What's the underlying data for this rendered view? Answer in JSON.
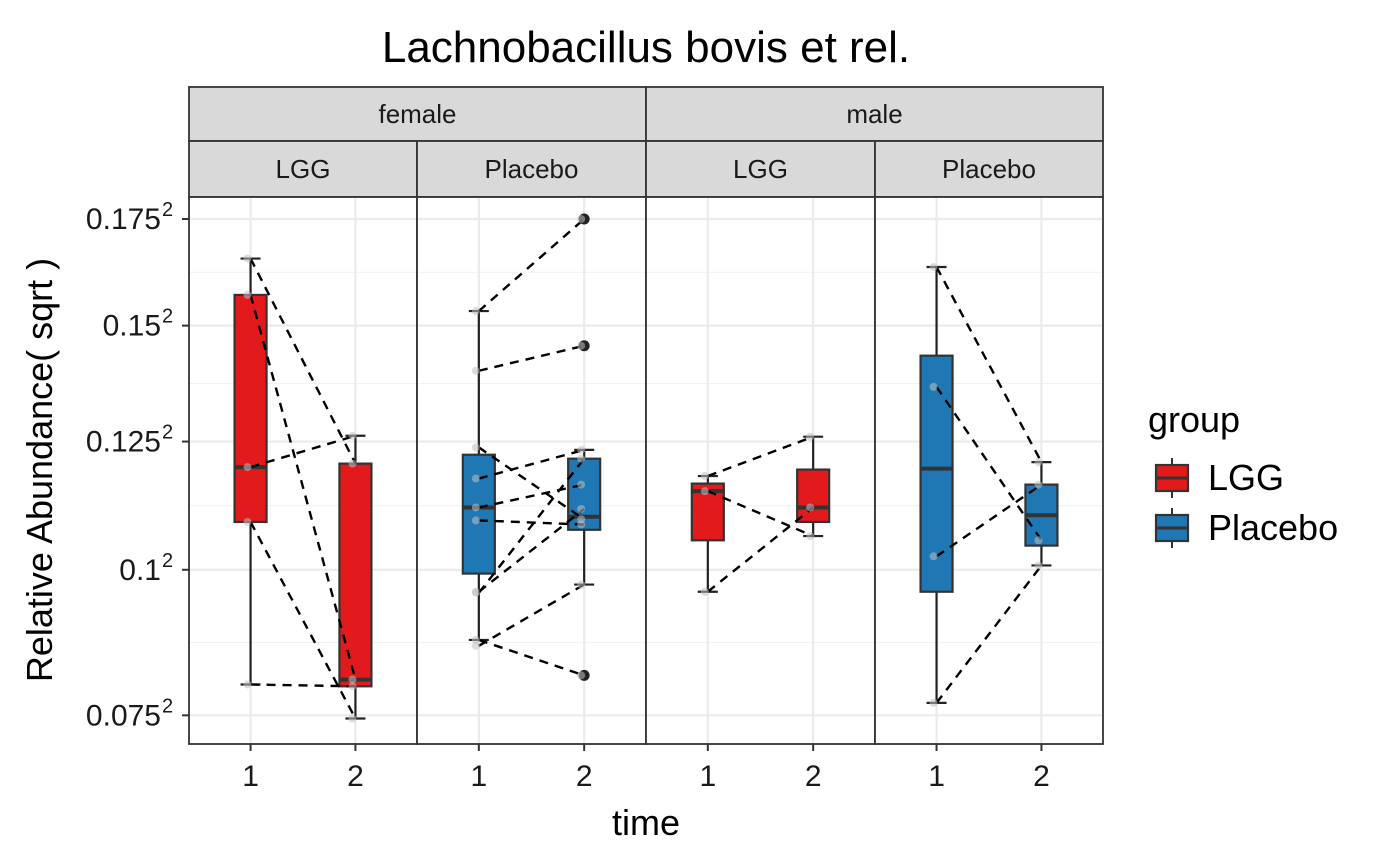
{
  "chart_data": {
    "type": "boxplot",
    "title": "Lachnobacillus bovis et rel.",
    "xlabel": "time",
    "ylabel": "Relative Abundance( sqrt )",
    "y_scale": "sqrt",
    "y_ticks": [
      {
        "value": 0.075,
        "base": "0.075",
        "exp": "2"
      },
      {
        "value": 0.1,
        "base": "0.1",
        "exp": "2"
      },
      {
        "value": 0.125,
        "base": "0.125",
        "exp": "2"
      },
      {
        "value": 0.15,
        "base": "0.15",
        "exp": "2"
      },
      {
        "value": 0.175,
        "base": "0.175",
        "exp": "2"
      }
    ],
    "ylim": [
      0.0705,
      0.1804
    ],
    "x_categories": [
      "1",
      "2"
    ],
    "grid": true,
    "legend": {
      "title": "group",
      "position": "right",
      "entries": [
        {
          "label": "LGG",
          "color": "#E31A1C"
        },
        {
          "label": "Placebo",
          "color": "#1F78B4"
        }
      ]
    },
    "panels": [
      {
        "sex": "female",
        "group": "LGG",
        "boxes": [
          {
            "time": "1",
            "q1": 0.109,
            "median": 0.1198,
            "q3": 0.157,
            "whisker_low": 0.08,
            "whisker_high": 0.1655,
            "outliers": []
          },
          {
            "time": "2",
            "q1": 0.0797,
            "median": 0.0808,
            "q3": 0.1205,
            "whisker_low": 0.0745,
            "whisker_high": 0.1262,
            "outliers": []
          }
        ],
        "pairs": [
          [
            0.1655,
            0.1205
          ],
          [
            0.157,
            0.0808
          ],
          [
            0.1198,
            0.1262
          ],
          [
            0.109,
            0.0745
          ],
          [
            0.08,
            0.0797
          ]
        ]
      },
      {
        "sex": "female",
        "group": "Placebo",
        "boxes": [
          {
            "time": "1",
            "q1": 0.0993,
            "median": 0.1118,
            "q3": 0.1223,
            "whisker_low": 0.0875,
            "whisker_high": 0.1533,
            "outliers": []
          },
          {
            "time": "2",
            "q1": 0.1075,
            "median": 0.11,
            "q3": 0.1215,
            "whisker_low": 0.0973,
            "whisker_high": 0.1233,
            "outliers": [
              0.175,
              0.1455,
              0.0815
            ]
          }
        ],
        "pairs": [
          [
            0.1533,
            0.175
          ],
          [
            0.14,
            0.1455
          ],
          [
            0.1238,
            0.1095
          ],
          [
            0.1175,
            0.1233
          ],
          [
            0.1118,
            0.1163
          ],
          [
            0.1093,
            0.1085
          ],
          [
            0.096,
            0.1115
          ],
          [
            0.0958,
            0.1215
          ],
          [
            0.0875,
            0.0815
          ],
          [
            0.0865,
            0.0973
          ]
        ]
      },
      {
        "sex": "male",
        "group": "LGG",
        "boxes": [
          {
            "time": "1",
            "q1": 0.1055,
            "median": 0.115,
            "q3": 0.1165,
            "whisker_low": 0.096,
            "whisker_high": 0.118,
            "outliers": []
          },
          {
            "time": "2",
            "q1": 0.109,
            "median": 0.1118,
            "q3": 0.1193,
            "whisker_low": 0.1063,
            "whisker_high": 0.126,
            "outliers": []
          }
        ],
        "pairs": [
          [
            0.118,
            0.126
          ],
          [
            0.115,
            0.1063
          ],
          [
            0.096,
            0.1118
          ]
        ]
      },
      {
        "sex": "male",
        "group": "Placebo",
        "boxes": [
          {
            "time": "1",
            "q1": 0.096,
            "median": 0.1195,
            "q3": 0.1433,
            "whisker_low": 0.077,
            "whisker_high": 0.1635,
            "outliers": []
          },
          {
            "time": "2",
            "q1": 0.1045,
            "median": 0.1103,
            "q3": 0.1163,
            "whisker_low": 0.1008,
            "whisker_high": 0.1208,
            "outliers": []
          }
        ],
        "pairs": [
          [
            0.1635,
            0.1208
          ],
          [
            0.1365,
            0.1055
          ],
          [
            0.1025,
            0.1163
          ],
          [
            0.077,
            0.1008
          ]
        ]
      }
    ]
  }
}
